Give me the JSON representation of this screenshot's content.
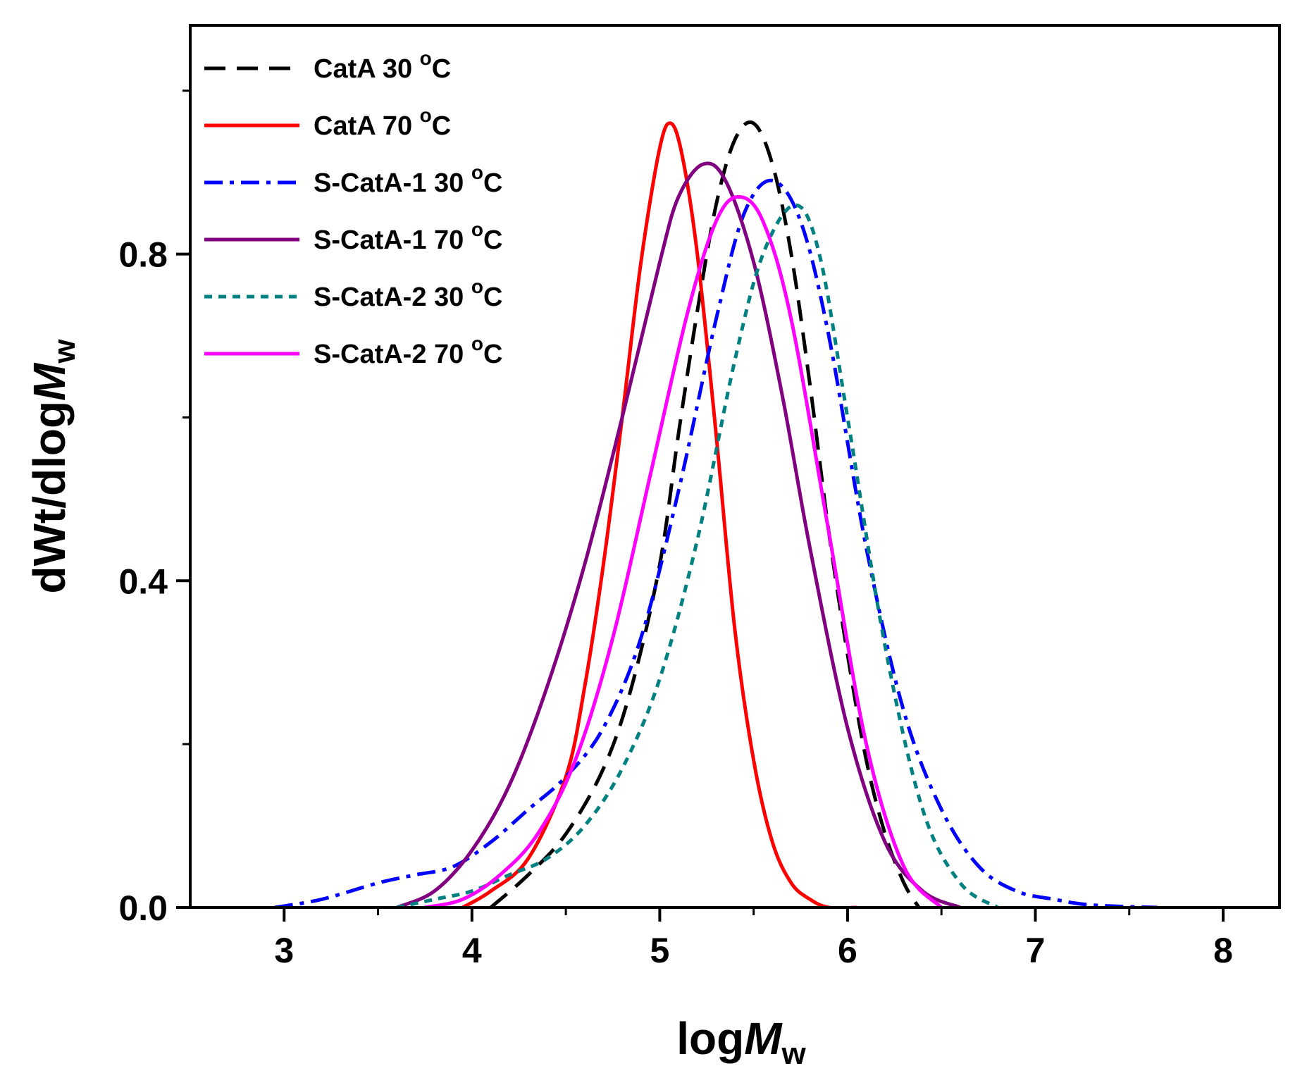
{
  "chart_data": {
    "type": "line",
    "title": "",
    "xlabel": {
      "main": "log",
      "italic": "M",
      "sub": "w"
    },
    "ylabel": {
      "main": "dWt/dlog",
      "italic": "M",
      "sub": "w"
    },
    "xlim": [
      2.5,
      8.3
    ],
    "ylim": [
      0,
      1.08
    ],
    "xticks": [
      3,
      4,
      5,
      6,
      7,
      8
    ],
    "xtick_labels": [
      "3",
      "4",
      "5",
      "6",
      "7",
      "8"
    ],
    "yticks": [
      0.0,
      0.4,
      0.8
    ],
    "ytick_labels": [
      "0.0",
      "0.4",
      "0.8"
    ],
    "legend_position": "top-left",
    "series": [
      {
        "name": "CatA 30 °C",
        "legend": {
          "text": "CatA 30 ",
          "sup": "o",
          "unit": "C"
        },
        "color": "#000000",
        "dash": "long-dash",
        "x": [
          4.1,
          4.3,
          4.5,
          4.7,
          4.85,
          5.0,
          5.1,
          5.2,
          5.3,
          5.4,
          5.5,
          5.6,
          5.7,
          5.8,
          5.9,
          6.0,
          6.1,
          6.2,
          6.3,
          6.38
        ],
        "y": [
          0.0,
          0.04,
          0.09,
          0.17,
          0.27,
          0.42,
          0.58,
          0.73,
          0.86,
          0.94,
          0.96,
          0.91,
          0.8,
          0.64,
          0.46,
          0.31,
          0.18,
          0.09,
          0.03,
          0.0
        ]
      },
      {
        "name": "CatA 70 °C",
        "legend": {
          "text": "CatA 70 ",
          "sup": "o",
          "unit": "C"
        },
        "color": "#ff0000",
        "dash": "solid",
        "x": [
          3.95,
          4.1,
          4.3,
          4.5,
          4.6,
          4.7,
          4.8,
          4.9,
          5.0,
          5.06,
          5.12,
          5.2,
          5.3,
          5.4,
          5.5,
          5.6,
          5.7,
          5.8,
          5.9,
          6.05
        ],
        "y": [
          0.0,
          0.02,
          0.06,
          0.16,
          0.27,
          0.42,
          0.6,
          0.79,
          0.93,
          0.96,
          0.92,
          0.8,
          0.58,
          0.34,
          0.18,
          0.08,
          0.03,
          0.01,
          0.0,
          0.0
        ]
      },
      {
        "name": "S-CatA-1 30 °C",
        "legend": {
          "text": "S-CatA-1 30 ",
          "sup": "o",
          "unit": "C"
        },
        "color": "#0000ff",
        "dash": "dash-dot",
        "x": [
          2.95,
          3.2,
          3.5,
          3.7,
          3.9,
          4.1,
          4.3,
          4.5,
          4.7,
          4.9,
          5.1,
          5.3,
          5.45,
          5.6,
          5.75,
          5.9,
          6.1,
          6.3,
          6.5,
          6.7,
          6.9,
          7.1,
          7.3,
          7.65
        ],
        "y": [
          0.0,
          0.01,
          0.03,
          0.04,
          0.05,
          0.08,
          0.12,
          0.16,
          0.22,
          0.33,
          0.51,
          0.72,
          0.85,
          0.89,
          0.84,
          0.7,
          0.44,
          0.24,
          0.12,
          0.05,
          0.02,
          0.01,
          0.003,
          0.0
        ]
      },
      {
        "name": "S-CatA-1 70 °C",
        "legend": {
          "text": "S-CatA-1 70 ",
          "sup": "o",
          "unit": "C"
        },
        "color": "#800080",
        "dash": "solid",
        "x": [
          3.6,
          3.8,
          4.0,
          4.2,
          4.4,
          4.6,
          4.8,
          5.0,
          5.1,
          5.23,
          5.35,
          5.5,
          5.65,
          5.8,
          6.0,
          6.2,
          6.4,
          6.6
        ],
        "y": [
          0.0,
          0.02,
          0.07,
          0.15,
          0.27,
          0.42,
          0.6,
          0.79,
          0.87,
          0.91,
          0.89,
          0.79,
          0.63,
          0.44,
          0.22,
          0.08,
          0.02,
          0.0
        ]
      },
      {
        "name": "S-CatA-2 30 °C",
        "legend": {
          "text": "S-CatA-2 30 ",
          "sup": "o",
          "unit": "C"
        },
        "color": "#008080",
        "dash": "short-dash",
        "x": [
          3.6,
          3.8,
          4.0,
          4.2,
          4.4,
          4.6,
          4.8,
          5.0,
          5.2,
          5.4,
          5.55,
          5.72,
          5.85,
          6.0,
          6.2,
          6.4,
          6.6,
          6.8
        ],
        "y": [
          0.0,
          0.01,
          0.02,
          0.04,
          0.06,
          0.1,
          0.17,
          0.28,
          0.45,
          0.67,
          0.8,
          0.86,
          0.8,
          0.6,
          0.32,
          0.12,
          0.03,
          0.0
        ]
      },
      {
        "name": "S-CatA-2 70 °C",
        "legend": {
          "text": "S-CatA-2 70 ",
          "sup": "o",
          "unit": "C"
        },
        "color": "#ff00ff",
        "dash": "solid",
        "x": [
          3.75,
          3.95,
          4.15,
          4.35,
          4.55,
          4.75,
          4.95,
          5.15,
          5.3,
          5.42,
          5.55,
          5.7,
          5.9,
          6.1,
          6.3,
          6.5
        ],
        "y": [
          0.0,
          0.01,
          0.04,
          0.09,
          0.18,
          0.33,
          0.53,
          0.73,
          0.84,
          0.87,
          0.84,
          0.72,
          0.46,
          0.2,
          0.05,
          0.0
        ]
      }
    ]
  }
}
